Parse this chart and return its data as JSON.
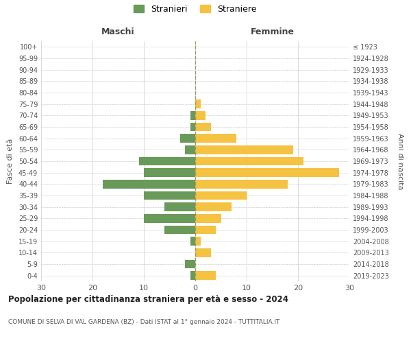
{
  "age_groups": [
    "0-4",
    "5-9",
    "10-14",
    "15-19",
    "20-24",
    "25-29",
    "30-34",
    "35-39",
    "40-44",
    "45-49",
    "50-54",
    "55-59",
    "60-64",
    "65-69",
    "70-74",
    "75-79",
    "80-84",
    "85-89",
    "90-94",
    "95-99",
    "100+"
  ],
  "birth_years": [
    "2019-2023",
    "2014-2018",
    "2009-2013",
    "2004-2008",
    "1999-2003",
    "1994-1998",
    "1989-1993",
    "1984-1988",
    "1979-1983",
    "1974-1978",
    "1969-1973",
    "1964-1968",
    "1959-1963",
    "1954-1958",
    "1949-1953",
    "1944-1948",
    "1939-1943",
    "1934-1938",
    "1929-1933",
    "1924-1928",
    "≤ 1923"
  ],
  "maschi": [
    1,
    2,
    0,
    1,
    6,
    10,
    6,
    10,
    18,
    10,
    11,
    2,
    3,
    1,
    1,
    0,
    0,
    0,
    0,
    0,
    0
  ],
  "femmine": [
    4,
    0,
    3,
    1,
    4,
    5,
    7,
    10,
    18,
    28,
    21,
    19,
    8,
    3,
    2,
    1,
    0,
    0,
    0,
    0,
    0
  ],
  "maschi_color": "#6a9a5a",
  "femmine_color": "#f5c242",
  "background_color": "#ffffff",
  "grid_color": "#cccccc",
  "title": "Popolazione per cittadinanza straniera per età e sesso - 2024",
  "subtitle": "COMUNE DI SELVA DI VAL GARDENA (BZ) - Dati ISTAT al 1° gennaio 2024 - TUTTITALIA.IT",
  "xlabel_left": "Maschi",
  "xlabel_right": "Femmine",
  "ylabel_left": "Fasce di età",
  "ylabel_right": "Anni di nascita",
  "legend_stranieri": "Stranieri",
  "legend_straniere": "Straniere",
  "xlim": 30
}
